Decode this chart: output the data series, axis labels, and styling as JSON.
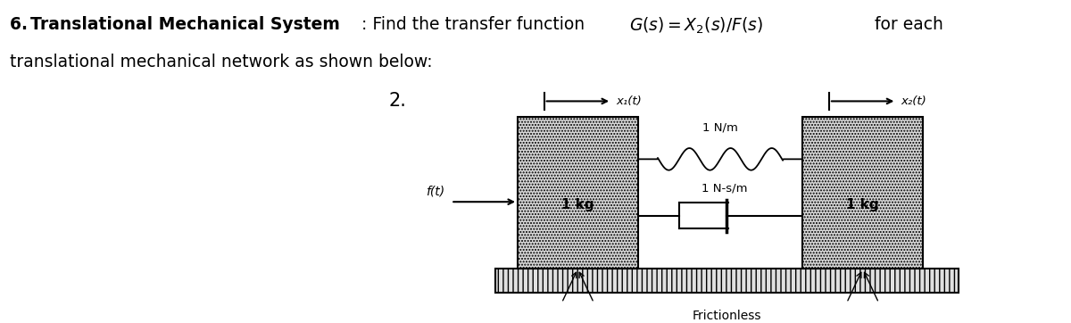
{
  "background_color": "#ffffff",
  "spring_label": "1 N/m",
  "damper_label": "1 N-s/m",
  "mass1_label": "1 kg",
  "mass2_label": "1 kg",
  "force_label": "f(t)",
  "x1_label": "x₁(t)",
  "x2_label": "x₂(t)",
  "frictionless_label": "Frictionless",
  "number_label": "2.",
  "title_bold_part": "6. Translational Mechanical System",
  "title_normal_part": ": Find the transfer function ",
  "title_math_part": "$G(s) = X_2(s)/\\, F(s)$",
  "title_end_part": " for each",
  "subtitle_part": "translational mechanical network as shown below:",
  "block_facecolor": "#d8d8d8",
  "block_hatch": ".....",
  "ground_facecolor": "#e0e0e0",
  "ground_hatch": "|||"
}
